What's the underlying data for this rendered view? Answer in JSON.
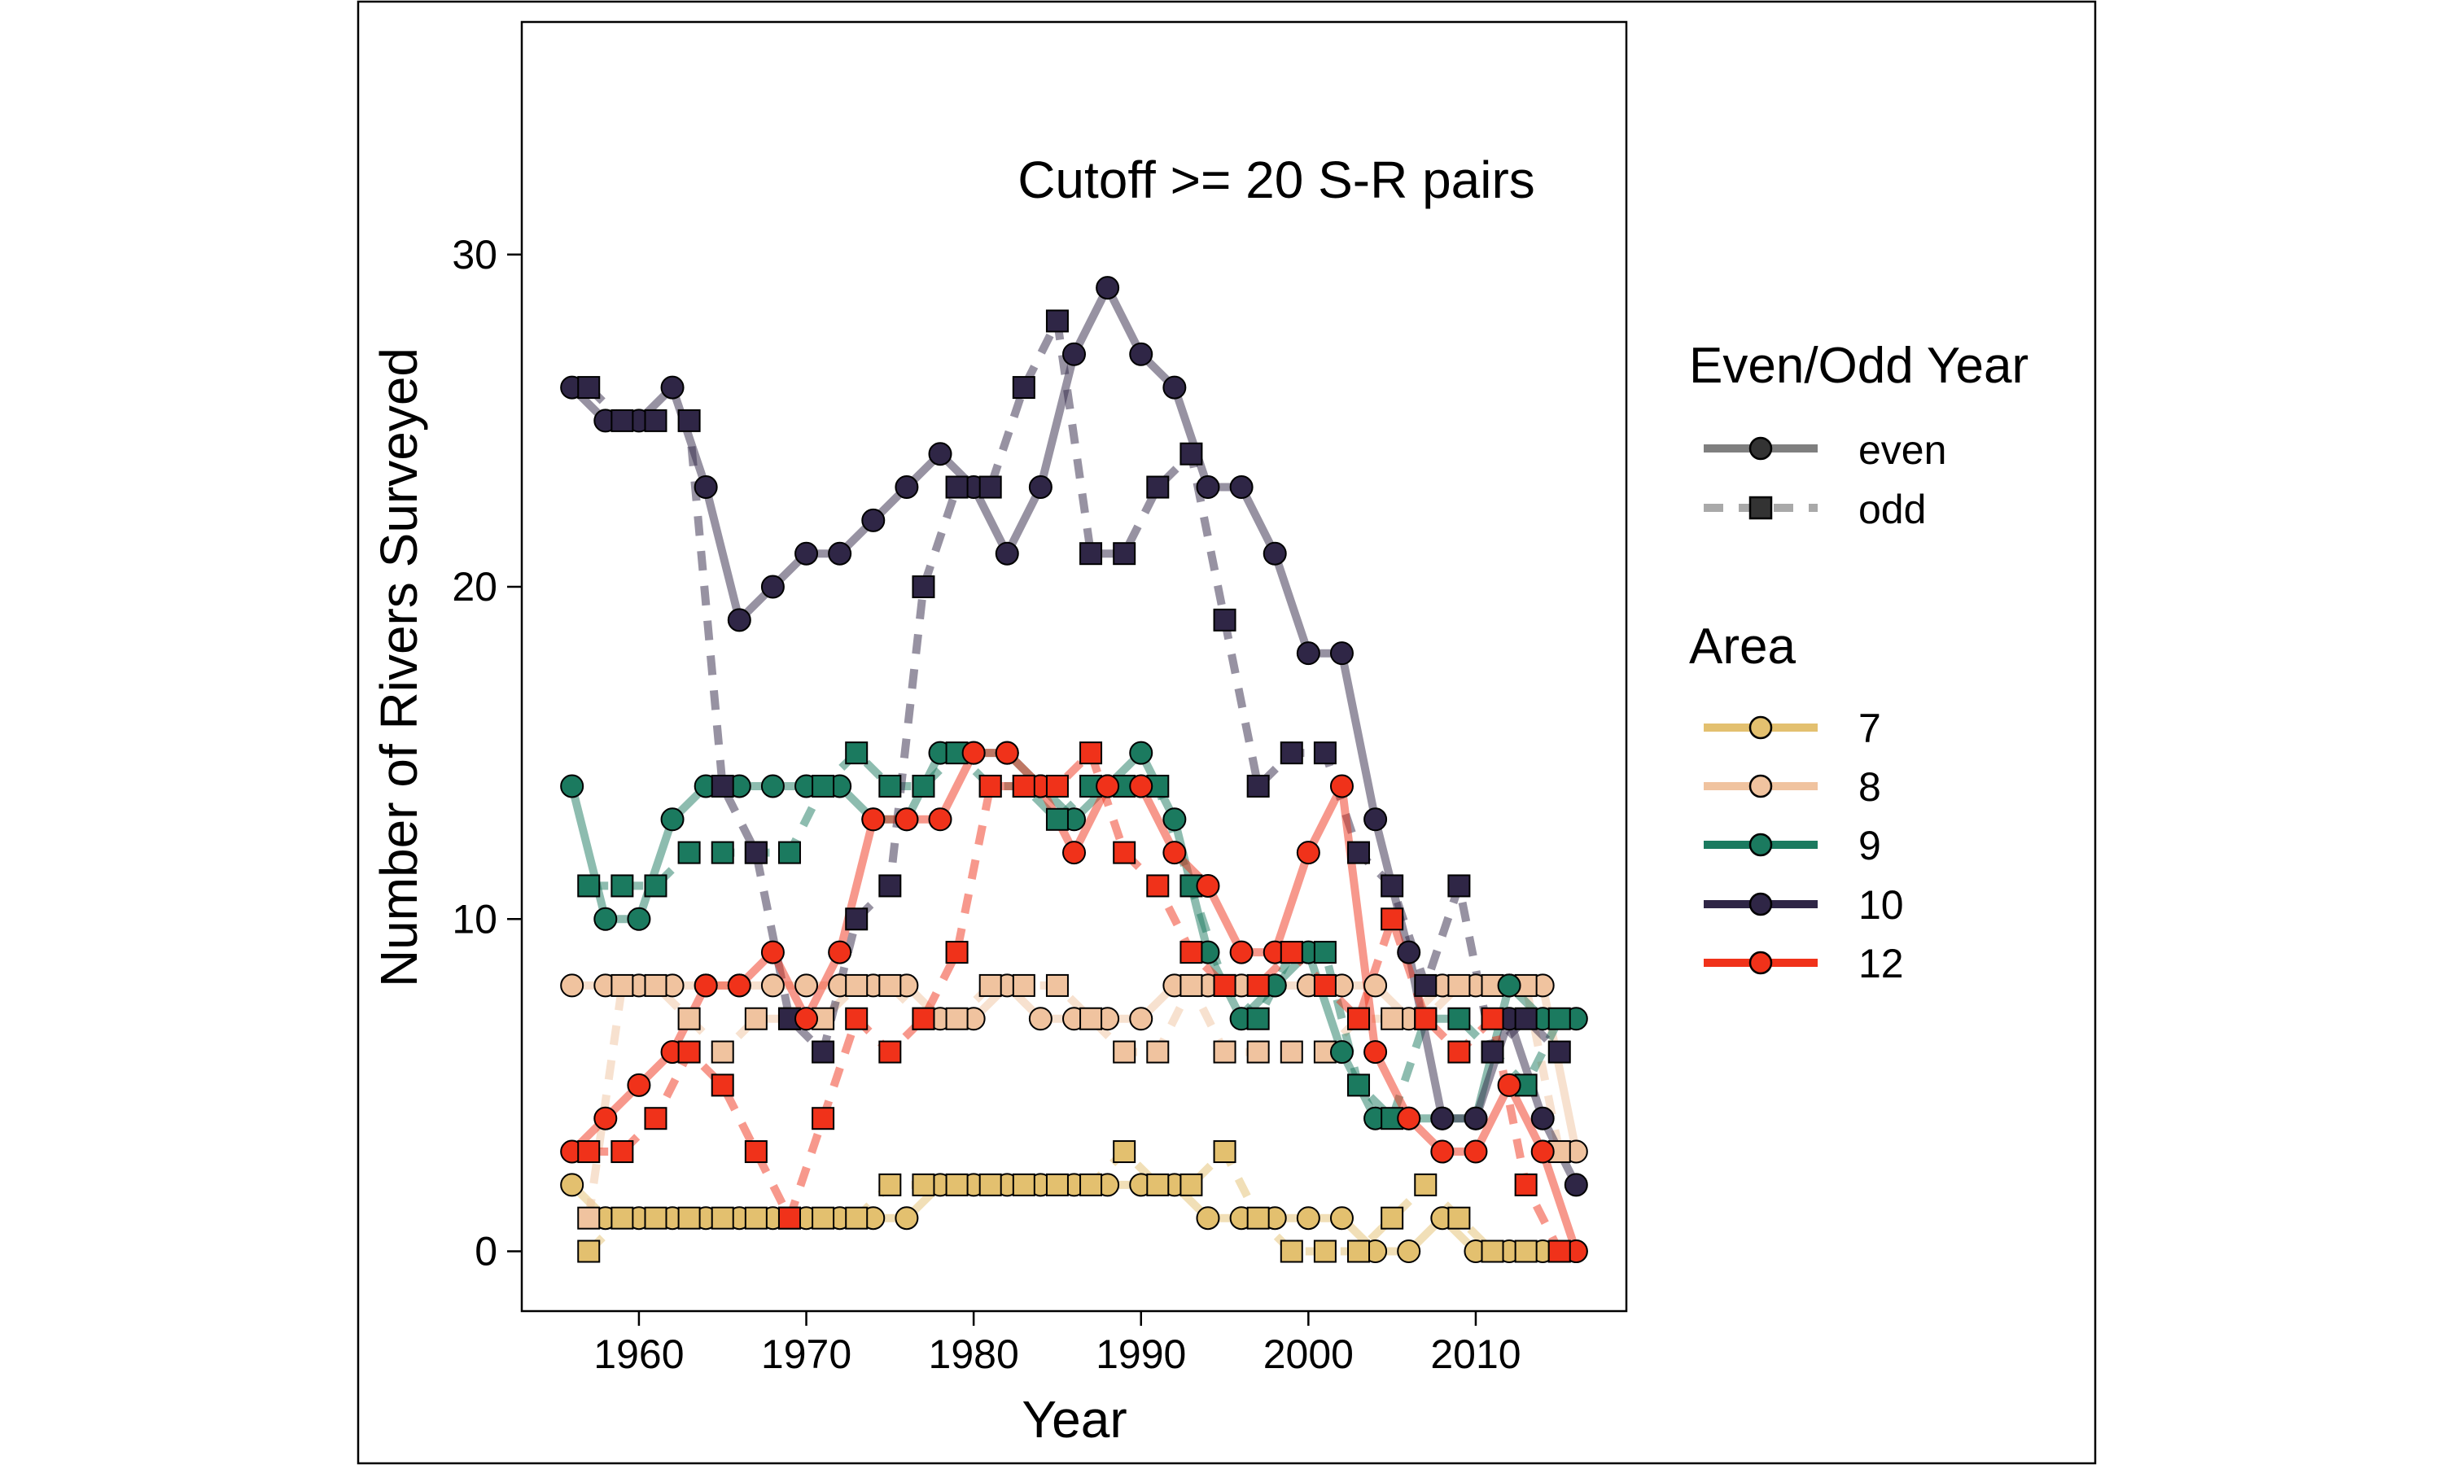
{
  "chart_data": {
    "type": "line",
    "annotation": "Cutoff >= 20 S-R pairs",
    "xlabel": "Year",
    "ylabel": "Number of Rivers Surveyed",
    "xlim": [
      1953,
      2019
    ],
    "ylim": [
      -1.8,
      37
    ],
    "x_ticks": [
      1960,
      1970,
      1980,
      1990,
      2000,
      2010
    ],
    "y_ticks": [
      0,
      10,
      20,
      30
    ],
    "grid": false,
    "legend_placement": "right",
    "legend": {
      "parity": {
        "title": "Even/Odd Year",
        "items": [
          {
            "label": "even",
            "line": "solid",
            "marker": "circle",
            "color": "#7f7f7f"
          },
          {
            "label": "odd",
            "line": "dashed",
            "marker": "square",
            "color": "#a9a9a9"
          }
        ]
      },
      "area": {
        "title": "Area",
        "items": [
          {
            "label": "7",
            "color": "#e3c06f"
          },
          {
            "label": "8",
            "color": "#f0c39f"
          },
          {
            "label": "9",
            "color": "#1b7a5f"
          },
          {
            "label": "10",
            "color": "#2f2646"
          },
          {
            "label": "12",
            "color": "#f0321a"
          }
        ]
      }
    },
    "series": [
      {
        "area": "7",
        "parity": "even",
        "color": "#e3c06f",
        "x": [
          1956,
          1958,
          1960,
          1962,
          1964,
          1966,
          1968,
          1970,
          1972,
          1974,
          1976,
          1978,
          1980,
          1982,
          1984,
          1986,
          1988,
          1990,
          1992,
          1994,
          1996,
          1998,
          2000,
          2002,
          2004,
          2006,
          2008,
          2010,
          2012,
          2014,
          2016
        ],
        "y": [
          2,
          1,
          1,
          1,
          1,
          1,
          1,
          1,
          1,
          1,
          1,
          2,
          2,
          2,
          2,
          2,
          2,
          2,
          2,
          1,
          1,
          1,
          1,
          1,
          0,
          0,
          1,
          0,
          0,
          0,
          0
        ]
      },
      {
        "area": "7",
        "parity": "odd",
        "color": "#e3c06f",
        "x": [
          1957,
          1959,
          1961,
          1963,
          1965,
          1967,
          1969,
          1971,
          1973,
          1975,
          1977,
          1979,
          1981,
          1983,
          1985,
          1987,
          1989,
          1991,
          1993,
          1995,
          1997,
          1999,
          2001,
          2003,
          2005,
          2007,
          2009,
          2011,
          2013,
          2015
        ],
        "y": [
          0,
          1,
          1,
          1,
          1,
          1,
          1,
          1,
          1,
          2,
          2,
          2,
          2,
          2,
          2,
          2,
          3,
          2,
          2,
          3,
          1,
          0,
          0,
          0,
          1,
          2,
          1,
          0,
          0,
          0
        ]
      },
      {
        "area": "8",
        "parity": "even",
        "color": "#f0c39f",
        "x": [
          1956,
          1958,
          1960,
          1962,
          1964,
          1966,
          1968,
          1970,
          1972,
          1974,
          1976,
          1978,
          1980,
          1982,
          1984,
          1986,
          1988,
          1990,
          1992,
          1994,
          1996,
          1998,
          2000,
          2002,
          2004,
          2006,
          2008,
          2010,
          2012,
          2014,
          2016
        ],
        "y": [
          8,
          8,
          8,
          8,
          8,
          8,
          8,
          8,
          8,
          8,
          8,
          7,
          7,
          8,
          7,
          7,
          7,
          7,
          8,
          8,
          8,
          8,
          8,
          8,
          8,
          7,
          8,
          8,
          8,
          8,
          3
        ]
      },
      {
        "area": "8",
        "parity": "odd",
        "color": "#f0c39f",
        "x": [
          1957,
          1959,
          1961,
          1963,
          1965,
          1967,
          1969,
          1971,
          1973,
          1975,
          1977,
          1979,
          1981,
          1983,
          1985,
          1987,
          1989,
          1991,
          1993,
          1995,
          1997,
          1999,
          2001,
          2003,
          2005,
          2007,
          2009,
          2011,
          2013,
          2015
        ],
        "y": [
          1,
          8,
          8,
          7,
          6,
          7,
          7,
          7,
          8,
          8,
          7,
          7,
          8,
          8,
          8,
          7,
          6,
          6,
          8,
          6,
          6,
          6,
          6,
          7,
          7,
          7,
          8,
          8,
          8,
          3
        ]
      },
      {
        "area": "9",
        "parity": "even",
        "color": "#1b7a5f",
        "x": [
          1956,
          1958,
          1960,
          1962,
          1964,
          1966,
          1968,
          1970,
          1972,
          1974,
          1976,
          1978,
          1980,
          1982,
          1984,
          1986,
          1988,
          1990,
          1992,
          1994,
          1996,
          1998,
          2000,
          2002,
          2004,
          2006,
          2008,
          2010,
          2012,
          2014,
          2016
        ],
        "y": [
          14,
          10,
          10,
          13,
          14,
          14,
          14,
          14,
          14,
          13,
          13,
          15,
          15,
          15,
          14,
          13,
          14,
          15,
          13,
          9,
          7,
          8,
          9,
          6,
          4,
          4,
          4,
          4,
          8,
          7,
          7
        ]
      },
      {
        "area": "9",
        "parity": "odd",
        "color": "#1b7a5f",
        "x": [
          1957,
          1959,
          1961,
          1963,
          1965,
          1967,
          1969,
          1971,
          1973,
          1975,
          1977,
          1979,
          1981,
          1983,
          1985,
          1987,
          1989,
          1991,
          1993,
          1995,
          1997,
          1999,
          2001,
          2003,
          2005,
          2007,
          2009,
          2011,
          2013,
          2015
        ],
        "y": [
          11,
          11,
          11,
          12,
          12,
          12,
          12,
          14,
          15,
          14,
          14,
          15,
          14,
          14,
          13,
          14,
          14,
          14,
          11,
          8,
          7,
          9,
          9,
          5,
          4,
          7,
          7,
          6,
          5,
          7
        ]
      },
      {
        "area": "10",
        "parity": "even",
        "color": "#2f2646",
        "x": [
          1956,
          1958,
          1960,
          1962,
          1964,
          1966,
          1968,
          1970,
          1972,
          1974,
          1976,
          1978,
          1980,
          1982,
          1984,
          1986,
          1988,
          1990,
          1992,
          1994,
          1996,
          1998,
          2000,
          2002,
          2004,
          2006,
          2008,
          2010,
          2012,
          2014,
          2016
        ],
        "y": [
          26,
          25,
          25,
          26,
          23,
          19,
          20,
          21,
          21,
          22,
          23,
          24,
          23,
          21,
          23,
          27,
          29,
          27,
          26,
          23,
          23,
          21,
          18,
          18,
          13,
          9,
          4,
          4,
          7,
          4,
          2
        ]
      },
      {
        "area": "10",
        "parity": "odd",
        "color": "#2f2646",
        "x": [
          1957,
          1959,
          1961,
          1963,
          1965,
          1967,
          1969,
          1971,
          1973,
          1975,
          1977,
          1979,
          1981,
          1983,
          1985,
          1987,
          1989,
          1991,
          1993,
          1995,
          1997,
          1999,
          2001,
          2003,
          2005,
          2007,
          2009,
          2011,
          2013,
          2015
        ],
        "y": [
          26,
          25,
          25,
          25,
          14,
          12,
          7,
          6,
          10,
          11,
          20,
          23,
          23,
          26,
          28,
          21,
          21,
          23,
          24,
          19,
          14,
          15,
          15,
          12,
          11,
          8,
          11,
          6,
          7,
          6
        ]
      },
      {
        "area": "12",
        "parity": "even",
        "color": "#f0321a",
        "x": [
          1956,
          1958,
          1960,
          1962,
          1964,
          1966,
          1968,
          1970,
          1972,
          1974,
          1976,
          1978,
          1980,
          1982,
          1984,
          1986,
          1988,
          1990,
          1992,
          1994,
          1996,
          1998,
          2000,
          2002,
          2004,
          2006,
          2008,
          2010,
          2012,
          2014,
          2016
        ],
        "y": [
          3,
          4,
          5,
          6,
          8,
          8,
          9,
          7,
          9,
          13,
          13,
          13,
          15,
          15,
          14,
          12,
          14,
          14,
          12,
          11,
          9,
          9,
          12,
          14,
          6,
          4,
          3,
          3,
          5,
          3,
          0
        ]
      },
      {
        "area": "12",
        "parity": "odd",
        "color": "#f0321a",
        "x": [
          1957,
          1959,
          1961,
          1963,
          1965,
          1967,
          1969,
          1971,
          1973,
          1975,
          1977,
          1979,
          1981,
          1983,
          1985,
          1987,
          1989,
          1991,
          1993,
          1995,
          1997,
          1999,
          2001,
          2003,
          2005,
          2007,
          2009,
          2011,
          2013,
          2015
        ],
        "y": [
          3,
          3,
          4,
          6,
          5,
          3,
          1,
          4,
          7,
          6,
          7,
          9,
          14,
          14,
          14,
          15,
          12,
          11,
          9,
          8,
          8,
          9,
          8,
          7,
          10,
          7,
          6,
          7,
          2,
          0
        ]
      }
    ]
  }
}
